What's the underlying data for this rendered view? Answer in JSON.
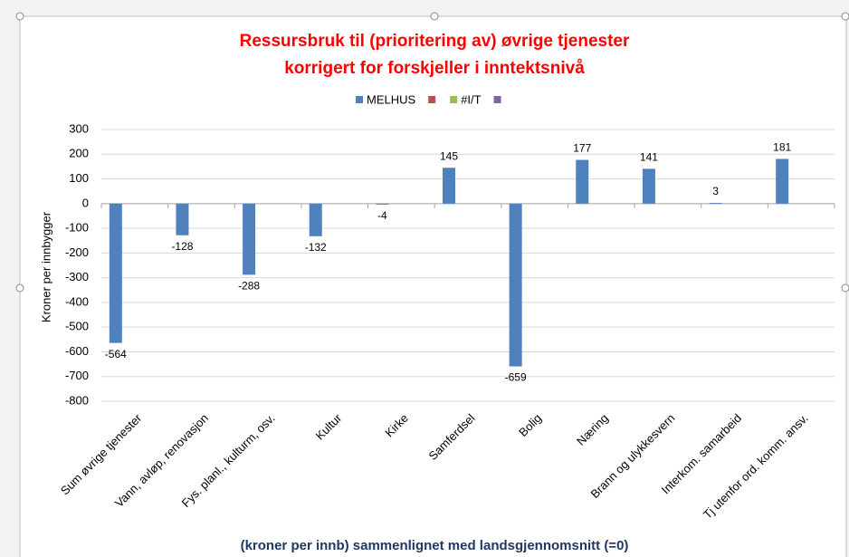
{
  "chart_data": {
    "type": "bar",
    "title": [
      "Ressursbruk til (prioritering av) øvrige tjenester",
      "korrigert for forskjeller i inntektsnivå"
    ],
    "y_label": "Kroner per innbygger",
    "x_label": "(kroner per innb) sammenlignet med landsgjennomsnitt (=0)",
    "categories": [
      "Sum øvrige tjenester",
      "Vann, avløp, renovasjon",
      "Fys. planl., kulturm, osv.",
      "Kultur",
      "Kirke",
      "Samferdsel",
      "Bolig",
      "Næring",
      "Brann og ulykkesvern",
      "Interkom. samarbeid",
      "Tj utenfor ord. komm. ansv."
    ],
    "series": [
      {
        "name": "MELHUS",
        "color": "#4f81bd",
        "values": [
          -564,
          -128,
          -288,
          -132,
          -4,
          145,
          -659,
          177,
          141,
          3,
          181
        ]
      },
      {
        "color": "#c0504d",
        "values": [
          null,
          null,
          null,
          null,
          null,
          null,
          null,
          null,
          null,
          null,
          null
        ]
      },
      {
        "name": "#I/T",
        "color": "#9bbb59",
        "values": [
          null,
          null,
          null,
          null,
          null,
          null,
          null,
          null,
          null,
          null,
          null
        ]
      },
      {
        "color": "#8064a2",
        "values": [
          null,
          null,
          null,
          null,
          null,
          null,
          null,
          null,
          null,
          null,
          null
        ]
      }
    ],
    "ylim": [
      -800,
      300
    ],
    "yticks": [
      -800,
      -700,
      -600,
      -500,
      -400,
      -300,
      -200,
      -100,
      0,
      100,
      200,
      300
    ],
    "grid": true
  }
}
